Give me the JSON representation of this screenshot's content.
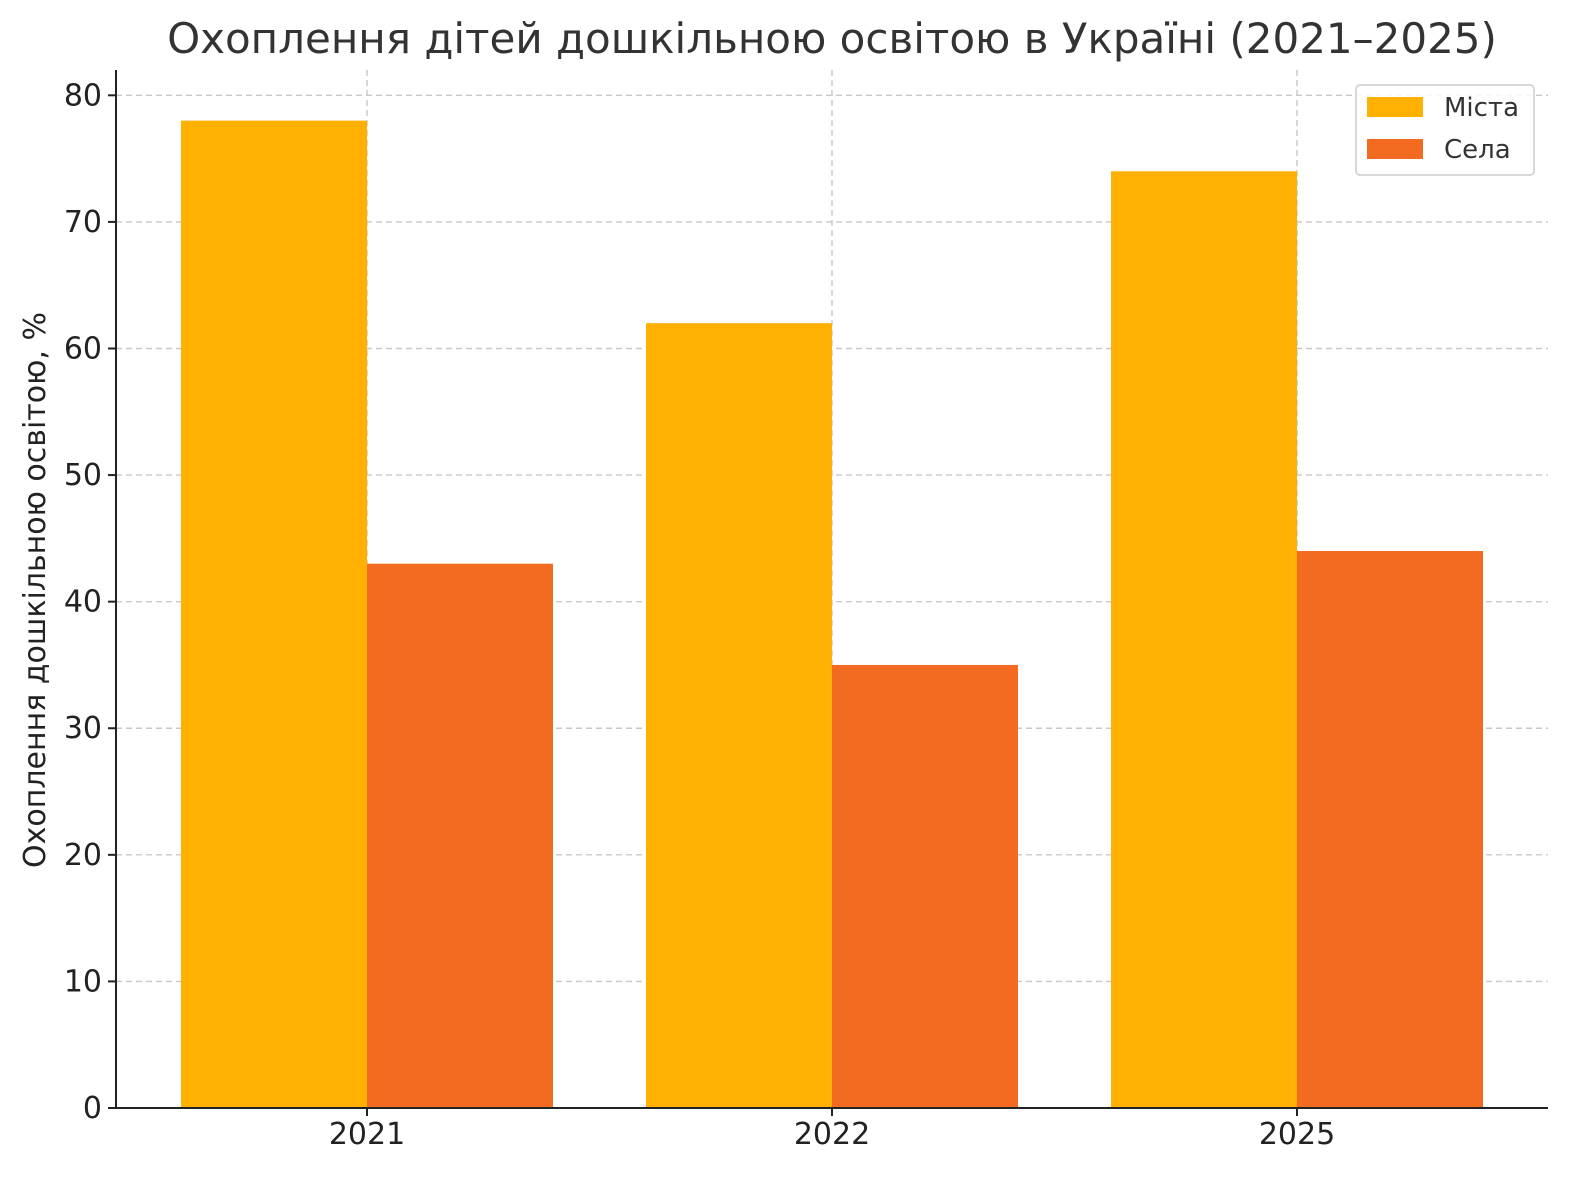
{
  "chart_data": {
    "type": "bar",
    "title": "Охоплення дітей дошкільною освітою в Україні (2021–2025)",
    "xlabel": "",
    "ylabel": "Охоплення дошкільною освітою, %",
    "categories": [
      "2021",
      "2022",
      "2025"
    ],
    "series": [
      {
        "name": "Міста",
        "values": [
          78,
          62,
          74
        ],
        "color": "#FFB000"
      },
      {
        "name": "Села",
        "values": [
          43,
          35,
          44
        ],
        "color": "#F26B21"
      }
    ],
    "ylim": [
      0,
      82
    ],
    "yticks": [
      0,
      10,
      20,
      30,
      40,
      50,
      60,
      70,
      80
    ],
    "grid": true,
    "legend_position": "top-right"
  }
}
